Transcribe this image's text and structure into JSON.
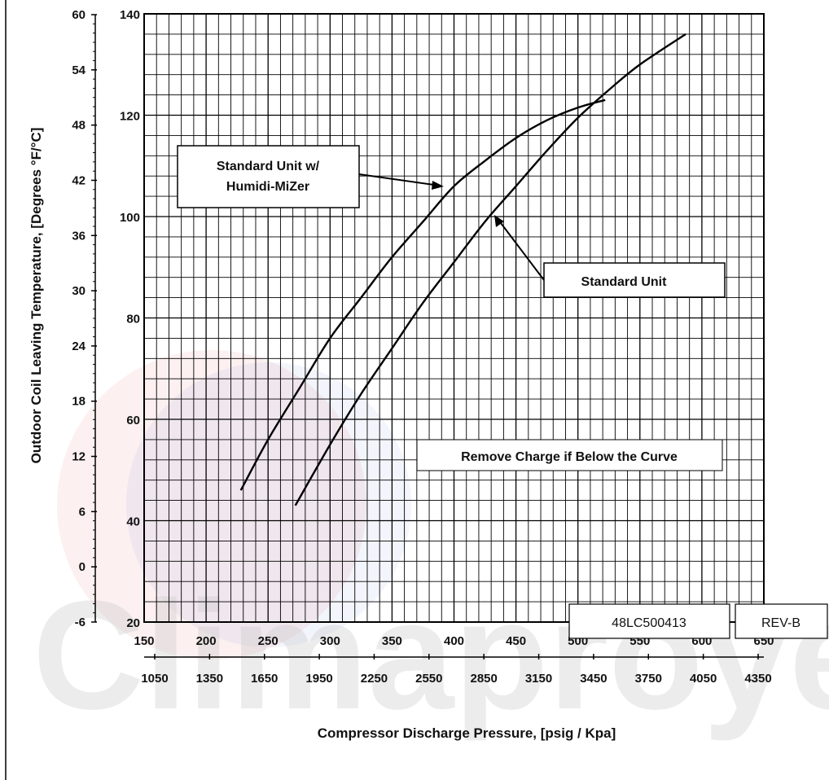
{
  "chart_data": {
    "type": "line",
    "xlabel": "Compressor Discharge Pressure, [psig / Kpa]",
    "ylabel": "Outdoor Coil Leaving Temperature, [Degrees °F/°C]",
    "x_ticks_psig": [
      "150",
      "200",
      "250",
      "300",
      "350",
      "400",
      "450",
      "500",
      "550",
      "600",
      "650"
    ],
    "x_ticks_kpa": [
      "1050",
      "1350",
      "1650",
      "1950",
      "2250",
      "2550",
      "2850",
      "3150",
      "3450",
      "3750",
      "4050",
      "4350"
    ],
    "y_ticks_f": [
      "20",
      "40",
      "60",
      "80",
      "100",
      "120",
      "140"
    ],
    "y_ticks_c": [
      "-6",
      "0",
      "6",
      "12",
      "18",
      "24",
      "30",
      "36",
      "42",
      "48",
      "54",
      "60"
    ],
    "xlim": [
      150,
      650
    ],
    "ylim": [
      20,
      140
    ],
    "grid": true,
    "series": [
      {
        "name": "Standard Unit w/ Humidi-MiZer",
        "x": [
          228,
          250,
          275,
          300,
          325,
          350,
          375,
          400,
          425,
          450,
          475,
          500,
          522
        ],
        "y": [
          46,
          56,
          66,
          76,
          84,
          92,
          99,
          106,
          111,
          115.5,
          119,
          121.5,
          123
        ]
      },
      {
        "name": "Standard Unit",
        "x": [
          272,
          300,
          325,
          350,
          375,
          400,
          425,
          450,
          475,
          500,
          525,
          550,
          587
        ],
        "y": [
          43,
          55,
          65,
          74,
          83,
          91,
          99,
          106,
          113,
          119.5,
          125,
          130,
          136
        ]
      }
    ],
    "annotations": [
      {
        "id": "label-hmz-1",
        "text": "Standard Unit w/"
      },
      {
        "id": "label-hmz-2",
        "text": "Humidi-MiZer"
      },
      {
        "id": "label-std",
        "text": "Standard  Unit"
      },
      {
        "id": "label-remove",
        "text": "Remove Charge if Below the Curve"
      }
    ]
  },
  "footer": {
    "doc_number": "48LC500413",
    "revision": "REV-B"
  },
  "watermark": {
    "text": "Climaproyect"
  },
  "colors": {
    "grid": "#000000",
    "curve": "#000000",
    "background": "#ffffff"
  }
}
